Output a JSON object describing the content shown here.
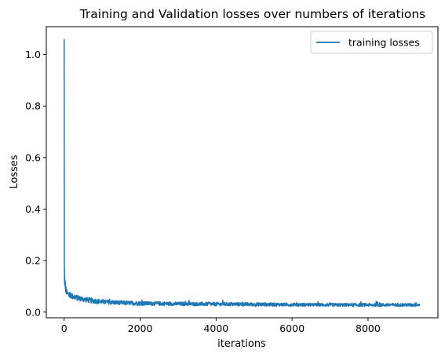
{
  "chart_data": {
    "type": "line",
    "title": "Training and Validation losses over numbers of iterations",
    "xlabel": "iterations",
    "ylabel": "Losses",
    "xlim": [
      -470,
      9840
    ],
    "ylim": [
      -0.022,
      1.108
    ],
    "xticks": [
      0,
      2000,
      4000,
      6000,
      8000
    ],
    "yticks": [
      0.0,
      0.2,
      0.4,
      0.6,
      0.8,
      1.0
    ],
    "xtick_labels": [
      "0",
      "2000",
      "4000",
      "6000",
      "8000"
    ],
    "ytick_labels": [
      "0.0",
      "0.2",
      "0.4",
      "0.6",
      "0.8",
      "1.0"
    ],
    "grid": false,
    "legend_position": "upper-right",
    "series_color": "#1f77b4",
    "series": [
      {
        "name": "training losses",
        "x": [
          0,
          5,
          10,
          20,
          30,
          50,
          80,
          120,
          200,
          300,
          500,
          700,
          1000,
          1500,
          2000,
          3000,
          4000,
          5000,
          6000,
          7000,
          8000,
          9000,
          9370
        ],
        "y": [
          1.06,
          0.18,
          0.13,
          0.11,
          0.1,
          0.085,
          0.075,
          0.068,
          0.062,
          0.057,
          0.05,
          0.045,
          0.04,
          0.036,
          0.034,
          0.032,
          0.031,
          0.03,
          0.029,
          0.028,
          0.028,
          0.028,
          0.028
        ],
        "noise_amplitude": [
          0,
          0.02,
          0.02,
          0.015,
          0.013,
          0.012,
          0.011,
          0.011,
          0.011,
          0.011,
          0.01,
          0.01,
          0.009,
          0.008,
          0.008,
          0.007,
          0.007,
          0.007,
          0.006,
          0.006,
          0.006,
          0.006,
          0.006
        ]
      }
    ]
  }
}
